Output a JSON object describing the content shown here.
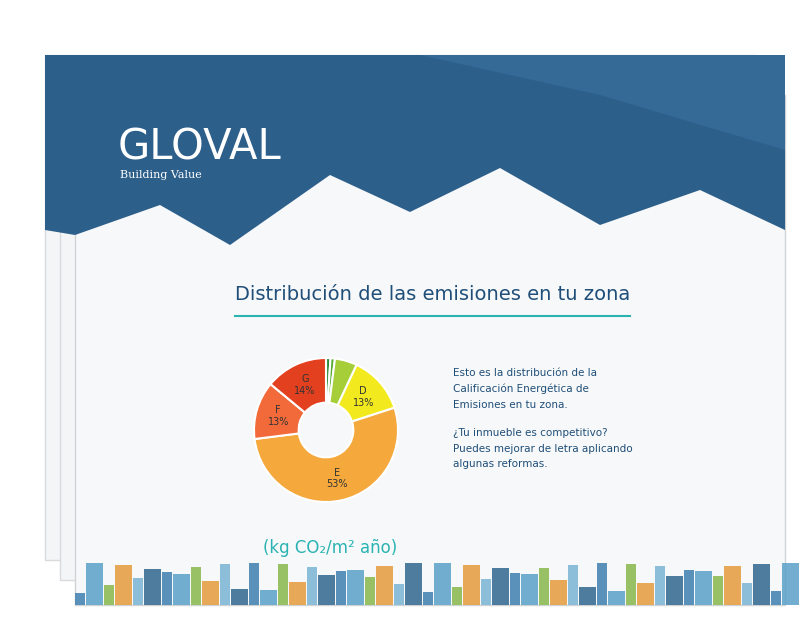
{
  "chart_data": {
    "type": "pie",
    "title": "Distribución de las emisiones en tu zona",
    "categories": [
      null,
      null,
      null,
      "D",
      "E",
      "F",
      "G"
    ],
    "values": [
      1,
      1,
      5,
      13,
      53,
      13,
      14
    ],
    "value_labels": [
      null,
      null,
      null,
      "13%",
      "53%",
      "13%",
      "14%"
    ],
    "colors": [
      "#2e8b3a",
      "#5aae32",
      "#a6ce39",
      "#f2ea1f",
      "#f5a83c",
      "#f26a3a",
      "#e2401f"
    ],
    "data_labels": true,
    "annotations": [
      "GLOVAL",
      "Building Value",
      "Esto es la distribución de la\nCalificación Energética de\nEmisiones en tu zona.",
      "¿Tu inmueble es competitivo?\nPuedes mejorar de letra aplicando\nalgunas reformas.",
      "(kg CO₂/m² año)"
    ]
  }
}
